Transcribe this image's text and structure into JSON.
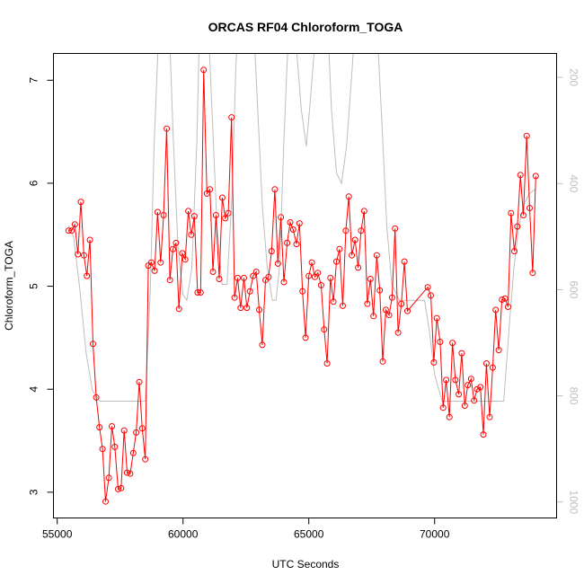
{
  "chart_data": {
    "type": "line",
    "title": "ORCAS RF04 Chloroform_TOGA",
    "xlabel": "UTC Seconds",
    "ylabel": "Chloroform_TOGA",
    "xlim": [
      54850,
      74850
    ],
    "ylim": [
      2.75,
      7.26
    ],
    "x_ticks": [
      55000,
      60000,
      65000,
      70000
    ],
    "x_tick_labels": [
      "55000",
      "60000",
      "65000",
      "70000"
    ],
    "y_ticks": [
      3,
      4,
      5,
      6,
      7
    ],
    "y_tick_labels": [
      "3",
      "4",
      "5",
      "6",
      "7"
    ],
    "grid": false,
    "legend": "none",
    "colors": {
      "series": "#ff0000",
      "secondary": "#bebebe",
      "axes": "#000000"
    },
    "series": [
      {
        "marker": "open-circle",
        "points": [
          [
            55450,
            5.54
          ],
          [
            55570,
            5.54
          ],
          [
            55700,
            5.6
          ],
          [
            55820,
            5.31
          ],
          [
            55940,
            5.82
          ],
          [
            56060,
            5.3
          ],
          [
            56180,
            5.1
          ],
          [
            56300,
            5.45
          ],
          [
            56420,
            4.44
          ],
          [
            56550,
            3.92
          ],
          [
            56680,
            3.63
          ],
          [
            56800,
            3.42
          ],
          [
            56920,
            2.91
          ],
          [
            57050,
            3.14
          ],
          [
            57170,
            3.64
          ],
          [
            57290,
            3.44
          ],
          [
            57420,
            3.03
          ],
          [
            57540,
            3.04
          ],
          [
            57660,
            3.6
          ],
          [
            57780,
            3.19
          ],
          [
            57900,
            3.18
          ],
          [
            58020,
            3.38
          ],
          [
            58140,
            3.58
          ],
          [
            58260,
            4.07
          ],
          [
            58380,
            3.62
          ],
          [
            58500,
            3.32
          ],
          [
            58620,
            5.2
          ],
          [
            58740,
            5.23
          ],
          [
            58870,
            5.15
          ],
          [
            58990,
            5.72
          ],
          [
            59110,
            5.23
          ],
          [
            59230,
            5.69
          ],
          [
            59350,
            6.53
          ],
          [
            59480,
            5.06
          ],
          [
            59600,
            5.36
          ],
          [
            59720,
            5.42
          ],
          [
            59840,
            4.78
          ],
          [
            59970,
            5.32
          ],
          [
            60090,
            5.26
          ],
          [
            60210,
            5.73
          ],
          [
            60330,
            5.5
          ],
          [
            60450,
            5.68
          ],
          [
            60580,
            4.94
          ],
          [
            60700,
            4.94
          ],
          [
            60820,
            7.1
          ],
          [
            60950,
            5.9
          ],
          [
            61070,
            5.94
          ],
          [
            61190,
            5.14
          ],
          [
            61310,
            5.69
          ],
          [
            61440,
            5.07
          ],
          [
            61560,
            5.86
          ],
          [
            61680,
            5.66
          ],
          [
            61800,
            5.71
          ],
          [
            61930,
            6.64
          ],
          [
            62050,
            4.89
          ],
          [
            62170,
            5.08
          ],
          [
            62290,
            4.79
          ],
          [
            62420,
            5.08
          ],
          [
            62540,
            4.79
          ],
          [
            62660,
            4.95
          ],
          [
            62790,
            5.1
          ],
          [
            62910,
            5.14
          ],
          [
            63030,
            4.77
          ],
          [
            63150,
            4.43
          ],
          [
            63280,
            5.06
          ],
          [
            63400,
            5.09
          ],
          [
            63520,
            5.34
          ],
          [
            63650,
            5.94
          ],
          [
            63770,
            5.22
          ],
          [
            63890,
            5.67
          ],
          [
            64010,
            5.04
          ],
          [
            64140,
            5.42
          ],
          [
            64260,
            5.62
          ],
          [
            64380,
            5.55
          ],
          [
            64510,
            5.41
          ],
          [
            64630,
            5.61
          ],
          [
            64750,
            4.95
          ],
          [
            64870,
            4.5
          ],
          [
            65000,
            5.1
          ],
          [
            65120,
            5.23
          ],
          [
            65240,
            5.09
          ],
          [
            65360,
            5.13
          ],
          [
            65490,
            5.01
          ],
          [
            65610,
            4.58
          ],
          [
            65730,
            4.25
          ],
          [
            65860,
            5.08
          ],
          [
            65980,
            4.85
          ],
          [
            66100,
            5.24
          ],
          [
            66220,
            5.36
          ],
          [
            66350,
            4.81
          ],
          [
            66470,
            5.54
          ],
          [
            66590,
            5.87
          ],
          [
            66710,
            5.3
          ],
          [
            66840,
            5.45
          ],
          [
            66960,
            5.18
          ],
          [
            67080,
            5.54
          ],
          [
            67200,
            5.73
          ],
          [
            67330,
            4.83
          ],
          [
            67450,
            5.07
          ],
          [
            67570,
            4.71
          ],
          [
            67700,
            5.3
          ],
          [
            67820,
            4.96
          ],
          [
            67940,
            4.27
          ],
          [
            68060,
            4.77
          ],
          [
            68190,
            4.72
          ],
          [
            68310,
            4.89
          ],
          [
            68430,
            5.56
          ],
          [
            68550,
            4.55
          ],
          [
            68680,
            4.83
          ],
          [
            68800,
            5.24
          ],
          [
            68920,
            4.76
          ],
          [
            69730,
            4.99
          ],
          [
            69850,
            4.91
          ],
          [
            69970,
            4.26
          ],
          [
            70090,
            4.69
          ],
          [
            70220,
            4.46
          ],
          [
            70340,
            3.82
          ],
          [
            70460,
            4.09
          ],
          [
            70590,
            3.73
          ],
          [
            70710,
            4.45
          ],
          [
            70830,
            4.09
          ],
          [
            70960,
            3.95
          ],
          [
            71080,
            4.35
          ],
          [
            71200,
            3.84
          ],
          [
            71320,
            4.04
          ],
          [
            71450,
            4.1
          ],
          [
            71570,
            3.89
          ],
          [
            71690,
            4.0
          ],
          [
            71820,
            4.02
          ],
          [
            71940,
            3.56
          ],
          [
            72060,
            4.25
          ],
          [
            72190,
            3.73
          ],
          [
            72310,
            4.21
          ],
          [
            72430,
            4.77
          ],
          [
            72550,
            4.38
          ],
          [
            72680,
            4.87
          ],
          [
            72800,
            4.88
          ],
          [
            72920,
            4.8
          ],
          [
            73040,
            5.71
          ],
          [
            73170,
            5.34
          ],
          [
            73290,
            5.58
          ],
          [
            73410,
            6.08
          ],
          [
            73530,
            5.69
          ],
          [
            73660,
            6.46
          ],
          [
            73780,
            5.76
          ],
          [
            73900,
            5.13
          ],
          [
            74020,
            6.07
          ]
        ]
      },
      {
        "marker": "none",
        "axis": "right",
        "points": [
          [
            55450,
            480
          ],
          [
            55650,
            500
          ],
          [
            55900,
            600
          ],
          [
            56150,
            720
          ],
          [
            56400,
            790
          ],
          [
            56700,
            810
          ],
          [
            57000,
            810
          ],
          [
            57500,
            810
          ],
          [
            58000,
            810
          ],
          [
            58500,
            810
          ],
          [
            58700,
            600
          ],
          [
            58850,
            330
          ],
          [
            59050,
            95
          ],
          [
            59450,
            95
          ],
          [
            59600,
            300
          ],
          [
            59800,
            520
          ],
          [
            60000,
            610
          ],
          [
            60150,
            620
          ],
          [
            60350,
            560
          ],
          [
            60550,
            320
          ],
          [
            60650,
            120
          ],
          [
            60750,
            95
          ],
          [
            61000,
            95
          ],
          [
            61150,
            260
          ],
          [
            61350,
            480
          ],
          [
            61550,
            590
          ],
          [
            61750,
            590
          ],
          [
            61950,
            420
          ],
          [
            62100,
            180
          ],
          [
            62200,
            95
          ],
          [
            62800,
            95
          ],
          [
            62950,
            240
          ],
          [
            63150,
            440
          ],
          [
            63350,
            560
          ],
          [
            63550,
            620
          ],
          [
            63700,
            620
          ],
          [
            63850,
            550
          ],
          [
            64000,
            330
          ],
          [
            64150,
            160
          ],
          [
            64300,
            95
          ],
          [
            64500,
            140
          ],
          [
            64700,
            260
          ],
          [
            64900,
            330
          ],
          [
            65050,
            250
          ],
          [
            65250,
            130
          ],
          [
            65450,
            95
          ],
          [
            65750,
            95
          ],
          [
            65900,
            260
          ],
          [
            66100,
            380
          ],
          [
            66300,
            400
          ],
          [
            66500,
            330
          ],
          [
            66700,
            200
          ],
          [
            66850,
            95
          ],
          [
            67700,
            95
          ],
          [
            67900,
            280
          ],
          [
            68100,
            480
          ],
          [
            68300,
            590
          ],
          [
            68600,
            620
          ],
          [
            68950,
            620
          ],
          [
            69350,
            620
          ],
          [
            69600,
            620
          ],
          [
            69800,
            680
          ],
          [
            70000,
            760
          ],
          [
            70300,
            810
          ],
          [
            70700,
            810
          ],
          [
            71200,
            810
          ],
          [
            71700,
            810
          ],
          [
            72200,
            810
          ],
          [
            72500,
            810
          ],
          [
            72750,
            810
          ],
          [
            72950,
            680
          ],
          [
            73150,
            560
          ],
          [
            73350,
            480
          ],
          [
            73550,
            440
          ],
          [
            73750,
            420
          ],
          [
            74020,
            410
          ]
        ]
      }
    ],
    "secondary_axis": {
      "lim": [
        1030,
        155
      ],
      "ticks": [
        200,
        400,
        600,
        800,
        1000
      ],
      "tick_labels": [
        "200",
        "400",
        "600",
        "800",
        "1000"
      ]
    }
  }
}
